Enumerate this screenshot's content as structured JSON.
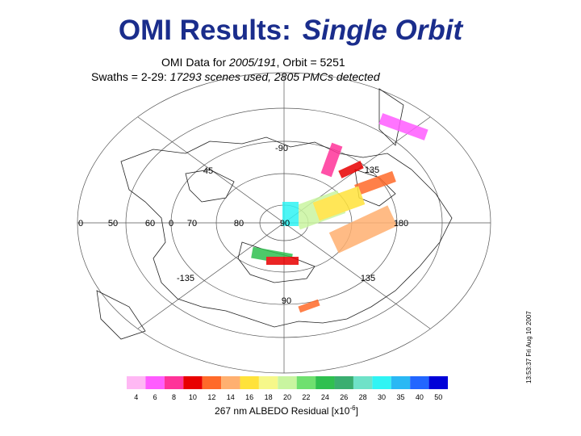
{
  "slide": {
    "title": {
      "main": "OMI Results:",
      "emphasis": "Single Orbit"
    },
    "figure": {
      "header": {
        "line1": {
          "prefix": "OMI Data for",
          "date": "2005/191",
          "orbit": ", Orbit = 5251"
        },
        "line2": {
          "prefix": "Swaths = 2-29:",
          "detail": "17293 scenes used, 2805 PMCs detected"
        }
      },
      "map_labels": [
        "-90",
        "45",
        "135",
        "0",
        "50",
        "60",
        "0",
        "70",
        "80",
        "90",
        "180",
        "-135",
        "135",
        "90"
      ],
      "colorbar": {
        "labels": [
          "4",
          "6",
          "8",
          "10",
          "12",
          "14",
          "16",
          "18",
          "20",
          "22",
          "24",
          "26",
          "28",
          "30",
          "35",
          "40",
          "50"
        ],
        "colors": [
          "#ffb8f4",
          "#ff5cff",
          "#ff3399",
          "#e80000",
          "#ff6a2a",
          "#ffb070",
          "#ffe23a",
          "#f6f88a",
          "#c9f5a0",
          "#6fe06f",
          "#2fc04f",
          "#3aae70",
          "#6fe2c8",
          "#30f4f4",
          "#2ab8f4",
          "#2266ff",
          "#0000d8"
        ],
        "title": "267 nm ALBEDO Residual [x10",
        "exponent": "-6",
        "title_end": "]"
      },
      "timestamp": "13:53:37 Fri Aug 10 2007"
    }
  }
}
